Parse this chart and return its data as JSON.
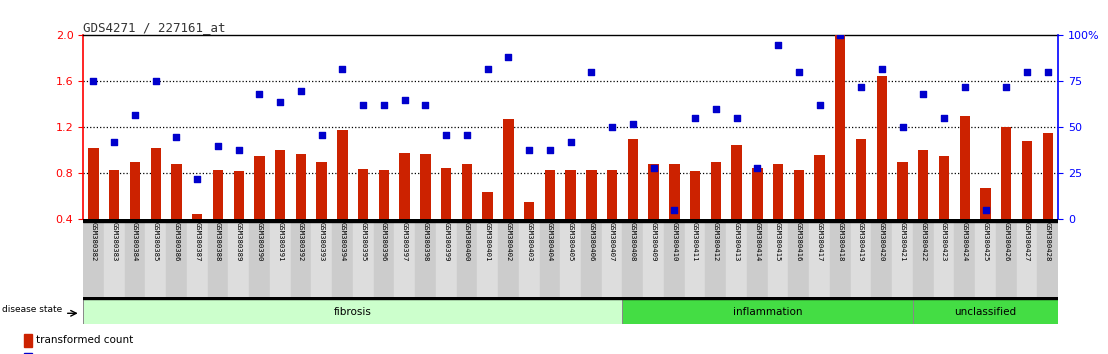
{
  "title": "GDS4271 / 227161_at",
  "samples": [
    "GSM380382",
    "GSM380383",
    "GSM380384",
    "GSM380385",
    "GSM380386",
    "GSM380387",
    "GSM380388",
    "GSM380389",
    "GSM380390",
    "GSM380391",
    "GSM380392",
    "GSM380393",
    "GSM380394",
    "GSM380395",
    "GSM380396",
    "GSM380397",
    "GSM380398",
    "GSM380399",
    "GSM380400",
    "GSM380401",
    "GSM380402",
    "GSM380403",
    "GSM380404",
    "GSM380405",
    "GSM380406",
    "GSM380407",
    "GSM380408",
    "GSM380409",
    "GSM380410",
    "GSM380411",
    "GSM380412",
    "GSM380413",
    "GSM380414",
    "GSM380415",
    "GSM380416",
    "GSM380417",
    "GSM380418",
    "GSM380419",
    "GSM380420",
    "GSM380421",
    "GSM380422",
    "GSM380423",
    "GSM380424",
    "GSM380425",
    "GSM380426",
    "GSM380427",
    "GSM380428"
  ],
  "bar_values": [
    1.02,
    0.83,
    0.9,
    1.02,
    0.88,
    0.45,
    0.83,
    0.82,
    0.95,
    1.0,
    0.97,
    0.9,
    1.18,
    0.84,
    0.83,
    0.98,
    0.97,
    0.85,
    0.88,
    0.64,
    1.27,
    0.55,
    0.83,
    0.83,
    0.83,
    0.83,
    1.1,
    0.88,
    0.88,
    0.82,
    0.9,
    1.05,
    0.85,
    0.88,
    0.83,
    0.96,
    2.0,
    1.1,
    1.65,
    0.9,
    1.0,
    0.95,
    1.3,
    0.67,
    1.2,
    1.08,
    1.15
  ],
  "percentile_values": [
    75,
    42,
    57,
    75,
    45,
    22,
    40,
    38,
    68,
    64,
    70,
    46,
    82,
    62,
    62,
    65,
    62,
    46,
    46,
    82,
    88,
    38,
    38,
    42,
    80,
    50,
    52,
    28,
    5,
    55,
    60,
    55,
    28,
    95,
    80,
    62,
    100,
    72,
    82,
    50,
    68,
    55,
    72,
    5,
    72,
    80,
    80
  ],
  "groups": [
    {
      "label": "fibrosis",
      "start": 0,
      "end": 26,
      "color": "#ccffcc"
    },
    {
      "label": "inflammation",
      "start": 26,
      "end": 40,
      "color": "#44dd44"
    },
    {
      "label": "unclassified",
      "start": 40,
      "end": 47,
      "color": "#44dd44"
    }
  ],
  "ylim_left": [
    0.4,
    2.0
  ],
  "ylim_right": [
    0,
    100
  ],
  "left_ticks": [
    0.4,
    0.8,
    1.2,
    1.6,
    2.0
  ],
  "right_ticks": [
    0,
    25,
    50,
    75,
    100
  ],
  "bar_color": "#cc2200",
  "dot_color": "#0000cc",
  "background_color": "#ffffff",
  "plot_bg_color": "#ffffff",
  "label_col_even": "#cccccc",
  "label_col_odd": "#dddddd"
}
